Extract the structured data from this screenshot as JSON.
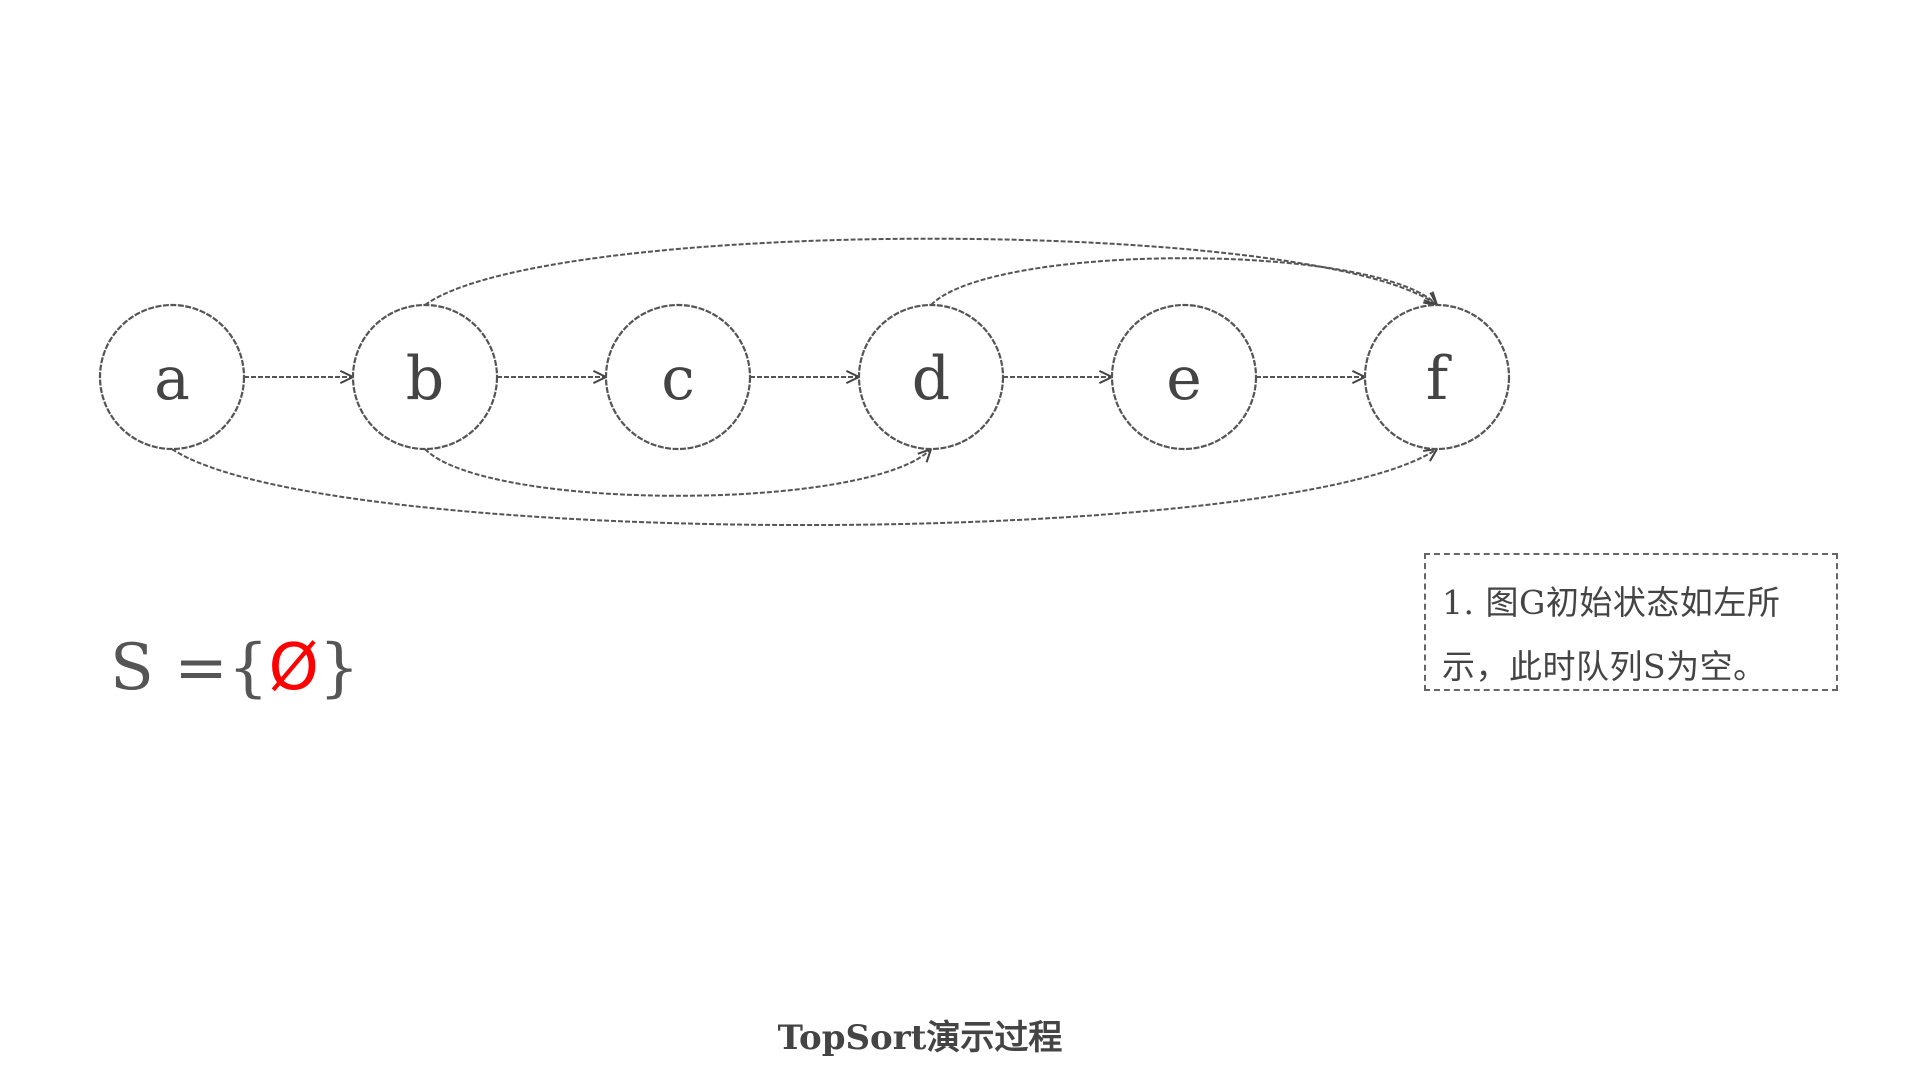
{
  "graph": {
    "nodes": [
      {
        "id": "a",
        "label": "a"
      },
      {
        "id": "b",
        "label": "b"
      },
      {
        "id": "c",
        "label": "c"
      },
      {
        "id": "d",
        "label": "d"
      },
      {
        "id": "e",
        "label": "e"
      },
      {
        "id": "f",
        "label": "f"
      }
    ],
    "edges": [
      {
        "from": "a",
        "to": "b"
      },
      {
        "from": "b",
        "to": "c"
      },
      {
        "from": "c",
        "to": "d"
      },
      {
        "from": "d",
        "to": "e"
      },
      {
        "from": "e",
        "to": "f"
      },
      {
        "from": "b",
        "to": "f"
      },
      {
        "from": "d",
        "to": "f"
      },
      {
        "from": "b",
        "to": "d"
      },
      {
        "from": "a",
        "to": "f"
      }
    ]
  },
  "queue": {
    "prefix": "S =",
    "open_brace": "{",
    "content": "Ø",
    "close_brace": "}",
    "content_color": "#ff0000"
  },
  "note": {
    "line1": "1. 图G初始状态如左所",
    "line2": "示，此时队列S为空。"
  },
  "caption": "TopSort演示过程"
}
